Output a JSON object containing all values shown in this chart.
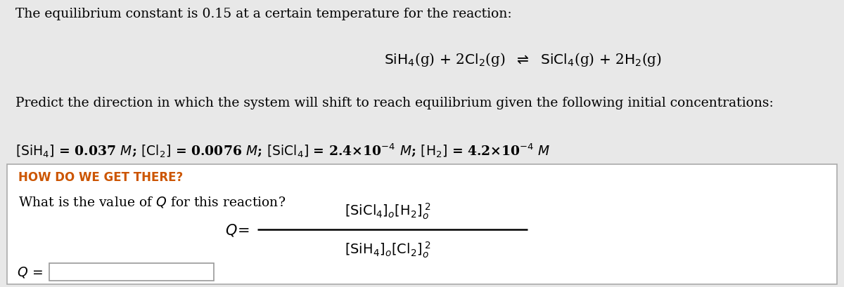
{
  "bg_top": "#e8e8e8",
  "bg_bottom": "#ffffff",
  "border_color": "#aaaaaa",
  "orange_color": "#cc5500",
  "text_color": "#000000",
  "line1": "The equilibrium constant is 0.15 at a certain temperature for the reaction:",
  "reaction_left": "SiH",
  "reaction": "$\\mathrm{SiH_4}$(g) + 2$\\mathrm{Cl_2}$(g)  $\\rightleftharpoons$  $\\mathrm{SiCl_4}$(g) + 2$\\mathrm{H_2}$(g)",
  "line3": "Predict the direction in which the system will shift to reach equilibrium given the following initial concentrations:",
  "concentrations": "$[\\mathrm{SiH_4}]$ = 0.037 $M$; $[\\mathrm{Cl_2}]$ = 0.0076 $M$; $[\\mathrm{SiCl_4}]$ = 2.4×10$^{-4}$ $M$; $[\\mathrm{H_2}]$ = 4.2×10$^{-4}$ $M$",
  "how_label": "HOW DO WE GET THERE?",
  "what_label": "What is the value of $Q$ for this reaction?",
  "figsize": [
    12.0,
    4.1
  ],
  "dpi": 100
}
